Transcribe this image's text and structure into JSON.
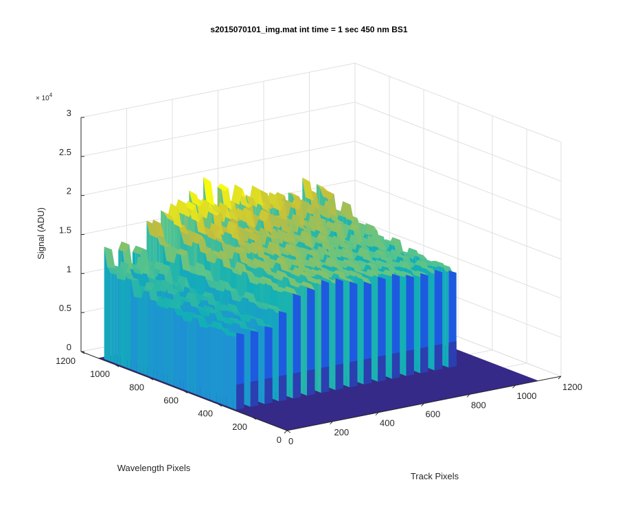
{
  "chart_data": {
    "type": "surface",
    "title": "s2015070101_img.mat int time = 1 sec  450 nm BS1",
    "xlabel": "Track Pixels",
    "ylabel": "Wavelength Pixels",
    "zlabel": "Signal (ADU)",
    "z_exponent_label": "× 10",
    "z_exponent_power": "4",
    "xlim": [
      0,
      1200
    ],
    "ylim": [
      0,
      1200
    ],
    "zlim": [
      0,
      30000
    ],
    "x_ticks": [
      0,
      200,
      400,
      600,
      800,
      1000,
      1200
    ],
    "y_ticks": [
      0,
      200,
      400,
      600,
      800,
      1000,
      1200
    ],
    "z_ticks": [
      0,
      5000,
      10000,
      15000,
      20000,
      25000,
      30000
    ],
    "x_tick_labels": [
      "0",
      "200",
      "400",
      "600",
      "800",
      "1000",
      "1200"
    ],
    "y_tick_labels": [
      "0",
      "200",
      "400",
      "600",
      "800",
      "1000",
      "1200"
    ],
    "z_tick_labels": [
      "0",
      "0.5",
      "1",
      "1.5",
      "2",
      "2.5",
      "3"
    ],
    "grid": true,
    "data_extent": {
      "x": [
        0,
        1100
      ],
      "y": [
        0,
        1100
      ]
    },
    "stripes": {
      "y_range": [
        310,
        1080
      ],
      "x_centers": [
        28,
        90,
        152,
        214,
        276,
        338,
        400,
        462,
        524,
        586,
        648,
        710,
        772,
        834,
        896,
        958
      ],
      "x_width": 34,
      "peak_signal": [
        13000,
        13500,
        13200,
        16000,
        18000,
        19000,
        19500,
        18800,
        18500,
        18200,
        17900,
        17500,
        17200,
        16800,
        16500,
        16200
      ],
      "mid_signal": [
        9500,
        10000,
        10200,
        11500,
        13500,
        14000,
        14200,
        14000,
        13800,
        13600,
        13400,
        13200,
        13000,
        12800,
        12700,
        12600
      ],
      "base_signal": 400
    },
    "colormap": [
      "#352a87",
      "#1c5ee0",
      "#1f8fd6",
      "#12b0b5",
      "#5ac48b",
      "#c2bd3d",
      "#f9fb0e"
    ]
  }
}
